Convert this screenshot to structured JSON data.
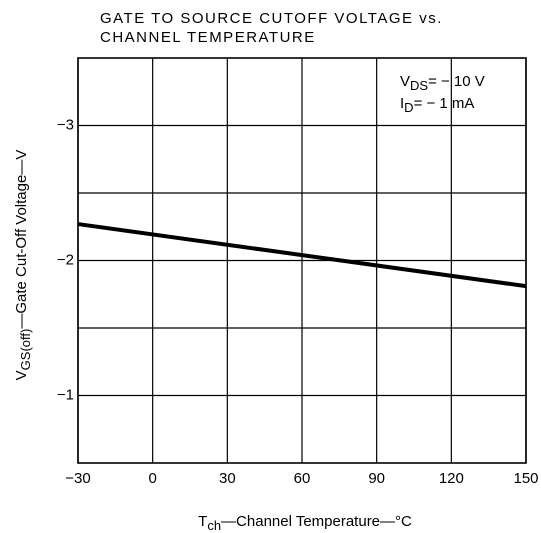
{
  "chart_data": {
    "type": "line",
    "title": [
      "GATE TO SOURCE CUTOFF VOLTAGE vs.",
      "CHANNEL TEMPERATURE"
    ],
    "x_label": {
      "main": "T",
      "sub": "ch",
      "rest": "—Channel Temperature—°C"
    },
    "y_label": {
      "main": "V",
      "sub": "GS(off)",
      "rest": "—Gate Cut-Off Voltage—V"
    },
    "annotations": [
      {
        "main": "V",
        "sub": "DS",
        "rest": "= − 10 V"
      },
      {
        "main": "I",
        "sub": "D",
        "rest": "= − 1 mA"
      }
    ],
    "x": [
      -30,
      150
    ],
    "series": [
      {
        "name": "VGS(off)",
        "color": "#000000",
        "values": [
          -2.27,
          -1.81
        ]
      }
    ],
    "xlim": [
      -30,
      150
    ],
    "xticks": [
      {
        "value": -30,
        "label": "−30"
      },
      0,
      30,
      60,
      90,
      120,
      150
    ],
    "ylim": [
      -0.5,
      -3.5
    ],
    "yticks": [
      {
        "value": -1,
        "label": "−1"
      },
      {
        "value": -2,
        "label": "−2"
      },
      {
        "value": -3,
        "label": "−3"
      }
    ],
    "y_minor_grid": [
      -1.5,
      -2.5
    ],
    "grid": true
  }
}
